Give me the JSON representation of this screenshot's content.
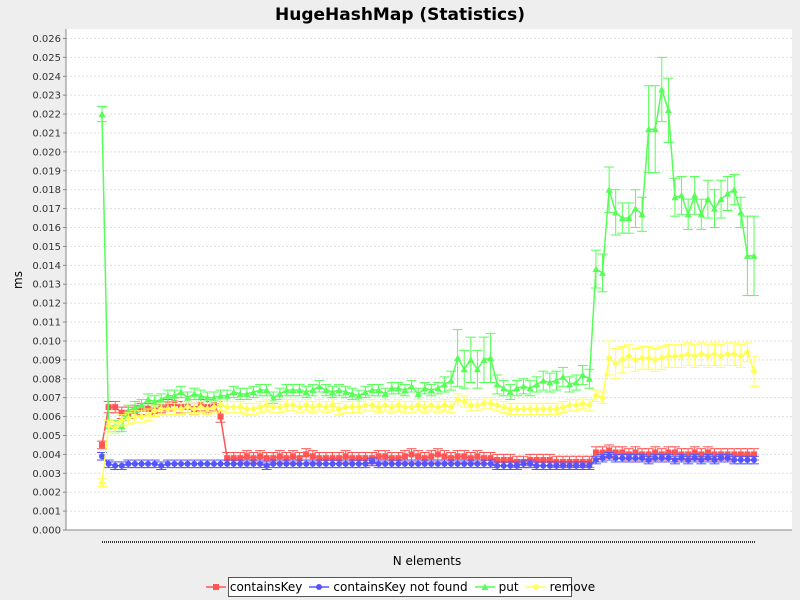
{
  "chart_data": {
    "type": "line",
    "title": "HugeHashMap (Statistics)",
    "xlabel": "N elements",
    "ylabel": "ms",
    "ylim": [
      0.0,
      0.0265
    ],
    "yticks": [
      "0.000",
      "0.001",
      "0.002",
      "0.003",
      "0.004",
      "0.005",
      "0.006",
      "0.007",
      "0.008",
      "0.009",
      "0.010",
      "0.011",
      "0.012",
      "0.013",
      "0.014",
      "0.015",
      "0.016",
      "0.017",
      "0.018",
      "0.019",
      "0.020",
      "0.021",
      "0.022",
      "0.023",
      "0.024",
      "0.025",
      "0.026"
    ],
    "grid": true,
    "legend_position": "bottom",
    "x": [
      1,
      2,
      3,
      4,
      5,
      6,
      7,
      8,
      9,
      10,
      11,
      12,
      13,
      14,
      15,
      16,
      17,
      18,
      19,
      20,
      21,
      22,
      23,
      24,
      25,
      26,
      27,
      28,
      29,
      30,
      31,
      32,
      33,
      34,
      35,
      36,
      37,
      38,
      39,
      40,
      41,
      42,
      43,
      44,
      45,
      46,
      47,
      48,
      49,
      50,
      51,
      52,
      53,
      54,
      55,
      56,
      57,
      58,
      59,
      60,
      61,
      62,
      63,
      64,
      65,
      66,
      67,
      68,
      69,
      70,
      71,
      72,
      73,
      74,
      75,
      76,
      77,
      78,
      79,
      80,
      81,
      82,
      83,
      84,
      85,
      86,
      87,
      88,
      89,
      90,
      91,
      92,
      93,
      94,
      95,
      96,
      97,
      98,
      99,
      100
    ],
    "series": [
      {
        "name": "containsKey",
        "color": "#ff5555",
        "marker": "square",
        "values": [
          0.0045,
          0.0065,
          0.0065,
          0.0062,
          0.0062,
          0.0063,
          0.0064,
          0.0064,
          0.0063,
          0.0065,
          0.0066,
          0.0067,
          0.0065,
          0.0065,
          0.0064,
          0.0066,
          0.0065,
          0.0066,
          0.006,
          0.0038,
          0.0038,
          0.0038,
          0.0039,
          0.0038,
          0.0039,
          0.0038,
          0.0038,
          0.0039,
          0.0038,
          0.0039,
          0.0038,
          0.004,
          0.0039,
          0.0038,
          0.0038,
          0.0038,
          0.0038,
          0.0039,
          0.0038,
          0.0038,
          0.0038,
          0.0038,
          0.0039,
          0.0039,
          0.0038,
          0.0038,
          0.0039,
          0.004,
          0.0039,
          0.0038,
          0.0039,
          0.004,
          0.0039,
          0.0038,
          0.0039,
          0.0039,
          0.0038,
          0.0039,
          0.0038,
          0.0038,
          0.0037,
          0.0037,
          0.0037,
          0.0036,
          0.0036,
          0.0037,
          0.0037,
          0.0037,
          0.0037,
          0.0036,
          0.0036,
          0.0036,
          0.0036,
          0.0036,
          0.0036,
          0.0041,
          0.0041,
          0.0042,
          0.0041,
          0.0041,
          0.004,
          0.0041,
          0.004,
          0.004,
          0.0041,
          0.004,
          0.0041,
          0.0041,
          0.004,
          0.004,
          0.0041,
          0.004,
          0.0041,
          0.004,
          0.004,
          0.004,
          0.004,
          0.004,
          0.004,
          0.004
        ],
        "errors": [
          0.0002,
          0.0003,
          0.0003,
          0.0003,
          0.0003,
          0.0003,
          0.0003,
          0.0003,
          0.0003,
          0.0003,
          0.0003,
          0.0003,
          0.0003,
          0.0003,
          0.0003,
          0.0003,
          0.0003,
          0.0003,
          0.0003,
          0.0003,
          0.0003,
          0.0003,
          0.0003,
          0.0003,
          0.0003,
          0.0003,
          0.0003,
          0.0003,
          0.0003,
          0.0003,
          0.0003,
          0.0003,
          0.0003,
          0.0003,
          0.0003,
          0.0003,
          0.0003,
          0.0003,
          0.0003,
          0.0003,
          0.0003,
          0.0003,
          0.0003,
          0.0003,
          0.0003,
          0.0003,
          0.0003,
          0.0003,
          0.0003,
          0.0003,
          0.0003,
          0.0003,
          0.0003,
          0.0003,
          0.0003,
          0.0003,
          0.0003,
          0.0003,
          0.0003,
          0.0003,
          0.0003,
          0.0003,
          0.0003,
          0.0003,
          0.0003,
          0.0003,
          0.0003,
          0.0003,
          0.0003,
          0.0003,
          0.0003,
          0.0003,
          0.0003,
          0.0003,
          0.0003,
          0.0003,
          0.0003,
          0.0003,
          0.0003,
          0.0003,
          0.0003,
          0.0003,
          0.0003,
          0.0003,
          0.0003,
          0.0003,
          0.0003,
          0.0003,
          0.0003,
          0.0003,
          0.0003,
          0.0003,
          0.0003,
          0.0003,
          0.0003,
          0.0003,
          0.0003,
          0.0003,
          0.0003,
          0.0003
        ]
      },
      {
        "name": "containsKey not found",
        "color": "#5555ff",
        "marker": "circle",
        "values": [
          0.0039,
          0.0035,
          0.0034,
          0.0034,
          0.0035,
          0.0035,
          0.0035,
          0.0035,
          0.0035,
          0.0034,
          0.0035,
          0.0035,
          0.0035,
          0.0035,
          0.0035,
          0.0035,
          0.0035,
          0.0035,
          0.0035,
          0.0035,
          0.0035,
          0.0035,
          0.0035,
          0.0035,
          0.0035,
          0.0034,
          0.0035,
          0.0035,
          0.0035,
          0.0035,
          0.0035,
          0.0035,
          0.0035,
          0.0035,
          0.0035,
          0.0035,
          0.0035,
          0.0035,
          0.0035,
          0.0035,
          0.0035,
          0.0036,
          0.0035,
          0.0035,
          0.0035,
          0.0035,
          0.0035,
          0.0035,
          0.0035,
          0.0035,
          0.0035,
          0.0035,
          0.0035,
          0.0035,
          0.0035,
          0.0035,
          0.0035,
          0.0035,
          0.0035,
          0.0035,
          0.0034,
          0.0034,
          0.0034,
          0.0034,
          0.0035,
          0.0035,
          0.0034,
          0.0034,
          0.0034,
          0.0034,
          0.0034,
          0.0034,
          0.0034,
          0.0034,
          0.0034,
          0.0037,
          0.0038,
          0.0039,
          0.0038,
          0.0038,
          0.0038,
          0.0038,
          0.0038,
          0.0037,
          0.0038,
          0.0038,
          0.0038,
          0.0037,
          0.0038,
          0.0037,
          0.0038,
          0.0037,
          0.0038,
          0.0037,
          0.0038,
          0.0038,
          0.0037,
          0.0037,
          0.0037,
          0.0037
        ],
        "errors": [
          0.0002,
          0.0002,
          0.0002,
          0.0002,
          0.0002,
          0.0002,
          0.0002,
          0.0002,
          0.0002,
          0.0002,
          0.0002,
          0.0002,
          0.0002,
          0.0002,
          0.0002,
          0.0002,
          0.0002,
          0.0002,
          0.0002,
          0.0002,
          0.0002,
          0.0002,
          0.0002,
          0.0002,
          0.0002,
          0.0002,
          0.0002,
          0.0002,
          0.0002,
          0.0002,
          0.0002,
          0.0002,
          0.0002,
          0.0002,
          0.0002,
          0.0002,
          0.0002,
          0.0002,
          0.0002,
          0.0002,
          0.0002,
          0.0002,
          0.0002,
          0.0002,
          0.0002,
          0.0002,
          0.0002,
          0.0002,
          0.0002,
          0.0002,
          0.0002,
          0.0002,
          0.0002,
          0.0002,
          0.0002,
          0.0002,
          0.0002,
          0.0002,
          0.0002,
          0.0002,
          0.0002,
          0.0002,
          0.0002,
          0.0002,
          0.0002,
          0.0002,
          0.0002,
          0.0002,
          0.0002,
          0.0002,
          0.0002,
          0.0002,
          0.0002,
          0.0002,
          0.0002,
          0.0002,
          0.0002,
          0.0002,
          0.0002,
          0.0002,
          0.0002,
          0.0002,
          0.0002,
          0.0002,
          0.0002,
          0.0002,
          0.0002,
          0.0002,
          0.0002,
          0.0002,
          0.0002,
          0.0002,
          0.0002,
          0.0002,
          0.0002,
          0.0002,
          0.0002,
          0.0002,
          0.0002,
          0.0002
        ]
      },
      {
        "name": "put",
        "color": "#55ff55",
        "marker": "triangle",
        "values": [
          0.022,
          0.0055,
          0.0055,
          0.0055,
          0.0063,
          0.0065,
          0.0066,
          0.0069,
          0.0068,
          0.0069,
          0.0071,
          0.0071,
          0.0073,
          0.007,
          0.0072,
          0.0071,
          0.007,
          0.007,
          0.0071,
          0.0071,
          0.0073,
          0.0072,
          0.0072,
          0.0073,
          0.0074,
          0.0074,
          0.007,
          0.0072,
          0.0074,
          0.0074,
          0.0074,
          0.0073,
          0.0074,
          0.0076,
          0.0074,
          0.0073,
          0.0074,
          0.0073,
          0.0072,
          0.0071,
          0.0073,
          0.0074,
          0.0074,
          0.0072,
          0.0075,
          0.0075,
          0.0074,
          0.0076,
          0.0072,
          0.0075,
          0.0074,
          0.0075,
          0.0077,
          0.0079,
          0.0091,
          0.0085,
          0.009,
          0.0085,
          0.009,
          0.0091,
          0.0077,
          0.0075,
          0.0073,
          0.0075,
          0.0076,
          0.0075,
          0.0077,
          0.0079,
          0.0078,
          0.0079,
          0.0081,
          0.0077,
          0.0078,
          0.0082,
          0.008,
          0.0138,
          0.0136,
          0.018,
          0.0168,
          0.0165,
          0.0165,
          0.017,
          0.0167,
          0.0212,
          0.0212,
          0.0233,
          0.0222,
          0.0176,
          0.0177,
          0.0167,
          0.0177,
          0.0167,
          0.0175,
          0.017,
          0.0175,
          0.0178,
          0.018,
          0.0168,
          0.0145,
          0.0145
        ],
        "errors": [
          0.0004,
          0.0003,
          0.0003,
          0.0003,
          0.0003,
          0.0003,
          0.0003,
          0.0003,
          0.0003,
          0.0003,
          0.0003,
          0.0003,
          0.0003,
          0.0003,
          0.0003,
          0.0003,
          0.0003,
          0.0003,
          0.0003,
          0.0003,
          0.0003,
          0.0003,
          0.0003,
          0.0003,
          0.0003,
          0.0003,
          0.0003,
          0.0003,
          0.0003,
          0.0003,
          0.0003,
          0.0003,
          0.0003,
          0.0003,
          0.0003,
          0.0003,
          0.0003,
          0.0003,
          0.0003,
          0.0003,
          0.0003,
          0.0003,
          0.0003,
          0.0003,
          0.0003,
          0.0003,
          0.0003,
          0.0003,
          0.0003,
          0.0003,
          0.0003,
          0.0003,
          0.0004,
          0.0005,
          0.0015,
          0.001,
          0.0012,
          0.001,
          0.0012,
          0.0013,
          0.0005,
          0.0004,
          0.0004,
          0.0004,
          0.0004,
          0.0004,
          0.0004,
          0.0005,
          0.0005,
          0.0005,
          0.0005,
          0.0004,
          0.0004,
          0.0005,
          0.0005,
          0.001,
          0.001,
          0.0012,
          0.0012,
          0.0008,
          0.0008,
          0.001,
          0.0009,
          0.0023,
          0.0023,
          0.0017,
          0.0017,
          0.001,
          0.001,
          0.0008,
          0.001,
          0.0008,
          0.001,
          0.001,
          0.001,
          0.0009,
          0.0008,
          0.0008,
          0.0021,
          0.0021
        ]
      },
      {
        "name": "remove",
        "color": "#ffff55",
        "marker": "diamond",
        "values": [
          0.0025,
          0.0055,
          0.0054,
          0.0058,
          0.0059,
          0.006,
          0.006,
          0.0061,
          0.0063,
          0.0064,
          0.0064,
          0.0064,
          0.0064,
          0.0065,
          0.0064,
          0.0065,
          0.0064,
          0.0065,
          0.0066,
          0.0065,
          0.0065,
          0.0065,
          0.0064,
          0.0064,
          0.0065,
          0.0066,
          0.0065,
          0.0065,
          0.0066,
          0.0066,
          0.0065,
          0.0066,
          0.0065,
          0.0066,
          0.0065,
          0.0066,
          0.0064,
          0.0065,
          0.0065,
          0.0065,
          0.0066,
          0.0066,
          0.0065,
          0.0066,
          0.0065,
          0.0066,
          0.0065,
          0.0065,
          0.0066,
          0.0065,
          0.0066,
          0.0065,
          0.0066,
          0.0065,
          0.0069,
          0.0068,
          0.0066,
          0.0066,
          0.0067,
          0.0067,
          0.0066,
          0.0065,
          0.0064,
          0.0064,
          0.0064,
          0.0064,
          0.0064,
          0.0064,
          0.0064,
          0.0064,
          0.0065,
          0.0066,
          0.0066,
          0.0067,
          0.0066,
          0.0071,
          0.007,
          0.0091,
          0.0088,
          0.009,
          0.0092,
          0.009,
          0.0091,
          0.0091,
          0.009,
          0.0091,
          0.0092,
          0.0092,
          0.0092,
          0.0093,
          0.0092,
          0.0093,
          0.0092,
          0.0093,
          0.0092,
          0.0093,
          0.0093,
          0.0092,
          0.0094,
          0.0084
        ],
        "errors": [
          0.0002,
          0.0003,
          0.0003,
          0.0003,
          0.0003,
          0.0003,
          0.0003,
          0.0003,
          0.0003,
          0.0003,
          0.0003,
          0.0003,
          0.0003,
          0.0003,
          0.0003,
          0.0003,
          0.0003,
          0.0003,
          0.0003,
          0.0003,
          0.0003,
          0.0003,
          0.0003,
          0.0003,
          0.0003,
          0.0003,
          0.0003,
          0.0003,
          0.0003,
          0.0003,
          0.0003,
          0.0003,
          0.0003,
          0.0003,
          0.0003,
          0.0003,
          0.0003,
          0.0003,
          0.0003,
          0.0003,
          0.0003,
          0.0003,
          0.0003,
          0.0003,
          0.0003,
          0.0003,
          0.0003,
          0.0003,
          0.0003,
          0.0003,
          0.0003,
          0.0003,
          0.0003,
          0.0003,
          0.0003,
          0.0003,
          0.0003,
          0.0003,
          0.0003,
          0.0003,
          0.0003,
          0.0003,
          0.0003,
          0.0003,
          0.0003,
          0.0003,
          0.0003,
          0.0003,
          0.0003,
          0.0003,
          0.0003,
          0.0003,
          0.0003,
          0.0003,
          0.0003,
          0.0003,
          0.0003,
          0.0009,
          0.0008,
          0.0007,
          0.0006,
          0.0006,
          0.0006,
          0.0006,
          0.0006,
          0.0006,
          0.0006,
          0.0006,
          0.0006,
          0.0006,
          0.0006,
          0.0006,
          0.0006,
          0.0006,
          0.0006,
          0.0006,
          0.0006,
          0.0006,
          0.0005,
          0.0008
        ]
      }
    ]
  }
}
